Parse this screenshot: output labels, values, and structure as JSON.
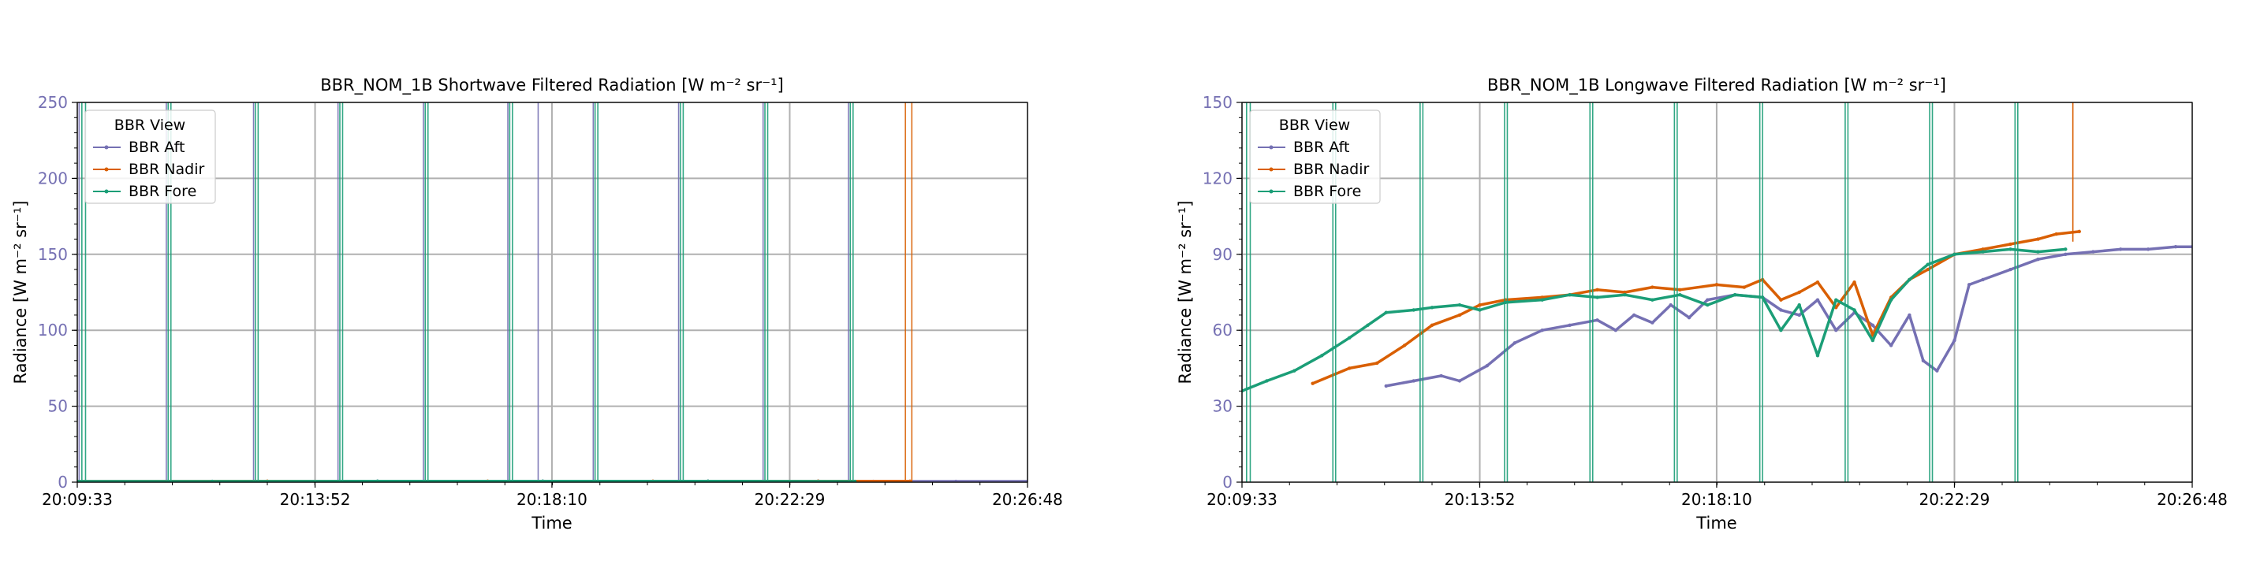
{
  "chart_data": [
    {
      "type": "line",
      "title": "BBR_NOM_1B Shortwave Filtered Radiation [W m⁻² sr⁻¹]",
      "xlabel": "Time",
      "ylabel": "Radiance [W m⁻² sr⁻¹]",
      "xticks": [
        "20:09:33",
        "20:13:52",
        "20:18:10",
        "20:22:29",
        "20:26:48"
      ],
      "yticks": [
        "0",
        "50",
        "100",
        "150",
        "200",
        "250"
      ],
      "ylim": [
        0,
        250
      ],
      "grid": true,
      "legend": {
        "title": "BBR View",
        "placement": "top-left",
        "entries": [
          "BBR Aft",
          "BBR Nadir",
          "BBR Fore"
        ]
      },
      "series": [
        {
          "name": "BBR Aft",
          "color": "#7570b3",
          "x": [
            "20:09:33",
            "20:12:00",
            "20:15:00",
            "20:18:00",
            "20:21:00",
            "20:23:00",
            "20:24:00",
            "20:25:30",
            "20:26:48"
          ],
          "values": [
            0.5,
            0.5,
            0.6,
            0.6,
            0.6,
            0.6,
            0.5,
            0.5,
            0.5
          ],
          "spikes": [
            "20:09:35",
            "20:11:10",
            "20:12:45",
            "20:14:17",
            "20:15:50",
            "20:17:22",
            "20:17:55",
            "20:18:55",
            "20:20:28",
            "20:22:00",
            "20:23:33"
          ]
        },
        {
          "name": "BBR Nadir",
          "color": "#d95f02",
          "x": [
            "20:09:33",
            "20:13:00",
            "20:17:00",
            "20:20:00",
            "20:23:00",
            "20:24:40"
          ],
          "values": [
            0.5,
            0.6,
            0.6,
            0.6,
            0.6,
            0.6
          ],
          "spikes": [
            "20:24:35",
            "20:24:42"
          ]
        },
        {
          "name": "BBR Fore",
          "color": "#1b9e77",
          "x": [
            "20:09:33",
            "20:12:00",
            "20:15:00",
            "20:18:00",
            "20:21:00",
            "20:23:40"
          ],
          "values": [
            0.5,
            0.5,
            0.6,
            0.6,
            0.6,
            0.5
          ],
          "spikes": [
            "20:09:38",
            "20:09:42",
            "20:11:12",
            "20:11:15",
            "20:12:47",
            "20:12:50",
            "20:14:19",
            "20:14:22",
            "20:15:52",
            "20:15:55",
            "20:17:24",
            "20:17:27",
            "20:18:57",
            "20:19:00",
            "20:20:30",
            "20:20:33",
            "20:22:02",
            "20:22:05",
            "20:23:35",
            "20:23:38"
          ]
        }
      ]
    },
    {
      "type": "line",
      "title": "BBR_NOM_1B Longwave Filtered Radiation [W m⁻² sr⁻¹]",
      "xlabel": "Time",
      "ylabel": "Radiance [W m⁻² sr⁻¹]",
      "xticks": [
        "20:09:33",
        "20:13:52",
        "20:18:10",
        "20:22:29",
        "20:26:48"
      ],
      "yticks": [
        "0",
        "30",
        "60",
        "90",
        "120",
        "150"
      ],
      "ylim": [
        0,
        150
      ],
      "grid": true,
      "legend": {
        "title": "BBR View",
        "placement": "top-left",
        "entries": [
          "BBR Aft",
          "BBR Nadir",
          "BBR Fore"
        ]
      },
      "series": [
        {
          "name": "BBR Aft",
          "color": "#7570b3",
          "x": [
            "20:12:10",
            "20:12:40",
            "20:13:10",
            "20:13:30",
            "20:14:00",
            "20:14:30",
            "20:15:00",
            "20:15:30",
            "20:16:00",
            "20:16:20",
            "20:16:40",
            "20:17:00",
            "20:17:20",
            "20:17:40",
            "20:18:00",
            "20:18:30",
            "20:19:00",
            "20:19:20",
            "20:19:40",
            "20:20:00",
            "20:20:20",
            "20:20:40",
            "20:21:00",
            "20:21:20",
            "20:21:40",
            "20:21:55",
            "20:22:10",
            "20:22:29",
            "20:22:45",
            "20:23:00",
            "20:23:30",
            "20:24:00",
            "20:24:30",
            "20:25:00",
            "20:25:30",
            "20:26:00",
            "20:26:30",
            "20:26:48"
          ],
          "values": [
            38,
            40,
            42,
            40,
            46,
            55,
            60,
            62,
            64,
            60,
            66,
            63,
            70,
            65,
            72,
            74,
            73,
            68,
            66,
            72,
            60,
            67,
            62,
            54,
            66,
            48,
            44,
            56,
            78,
            80,
            84,
            88,
            90,
            91,
            92,
            92,
            93,
            93
          ]
        },
        {
          "name": "BBR Nadir",
          "color": "#d95f02",
          "x": [
            "20:10:50",
            "20:11:30",
            "20:12:00",
            "20:12:30",
            "20:13:00",
            "20:13:30",
            "20:13:52",
            "20:14:20",
            "20:15:00",
            "20:15:30",
            "20:16:00",
            "20:16:30",
            "20:17:00",
            "20:17:30",
            "20:18:10",
            "20:18:40",
            "20:19:00",
            "20:19:20",
            "20:19:40",
            "20:20:00",
            "20:20:20",
            "20:20:40",
            "20:21:00",
            "20:21:20",
            "20:21:40",
            "20:22:00",
            "20:22:29",
            "20:23:00",
            "20:23:30",
            "20:24:00",
            "20:24:20",
            "20:24:45"
          ],
          "values": [
            39,
            45,
            47,
            54,
            62,
            66,
            70,
            72,
            73,
            74,
            76,
            75,
            77,
            76,
            78,
            77,
            80,
            72,
            75,
            79,
            69,
            79,
            58,
            73,
            80,
            84,
            90,
            92,
            94,
            96,
            98,
            99
          ]
        },
        {
          "name": "BBR Fore",
          "color": "#1b9e77",
          "x": [
            "20:09:33",
            "20:10:00",
            "20:10:30",
            "20:11:00",
            "20:11:30",
            "20:11:50",
            "20:12:10",
            "20:12:40",
            "20:13:00",
            "20:13:30",
            "20:13:52",
            "20:14:20",
            "20:15:00",
            "20:15:30",
            "20:16:00",
            "20:16:30",
            "20:17:00",
            "20:17:30",
            "20:18:00",
            "20:18:30",
            "20:19:00",
            "20:19:20",
            "20:19:40",
            "20:20:00",
            "20:20:20",
            "20:20:40",
            "20:21:00",
            "20:21:20",
            "20:21:40",
            "20:22:00",
            "20:22:29",
            "20:23:00",
            "20:23:30",
            "20:24:00",
            "20:24:30"
          ],
          "values": [
            36,
            40,
            44,
            50,
            57,
            62,
            67,
            68,
            69,
            70,
            68,
            71,
            72,
            74,
            73,
            74,
            72,
            74,
            70,
            74,
            73,
            60,
            70,
            50,
            72,
            68,
            56,
            72,
            80,
            86,
            90,
            91,
            92,
            91,
            92
          ],
          "spikes": [
            "20:09:38",
            "20:09:42",
            "20:11:12",
            "20:11:15",
            "20:12:47",
            "20:12:50",
            "20:14:19",
            "20:14:22",
            "20:15:52",
            "20:15:55",
            "20:17:24",
            "20:17:27",
            "20:18:57",
            "20:19:00",
            "20:20:30",
            "20:20:33",
            "20:22:02",
            "20:22:05",
            "20:23:35",
            "20:23:38"
          ]
        }
      ],
      "nadir_spikes": [
        "20:24:38"
      ]
    }
  ]
}
